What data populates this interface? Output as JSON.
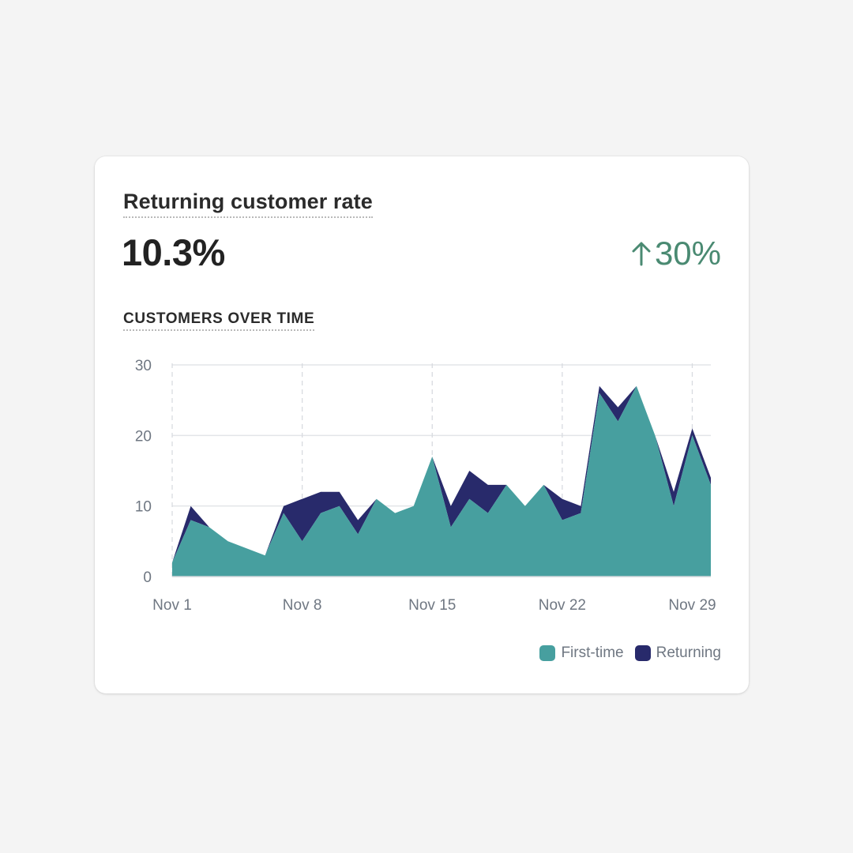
{
  "card": {
    "title": "Returning customer rate",
    "metric_value": "10.3%",
    "change_value": "30%",
    "change_icon": "arrow-up-icon",
    "change_color": "#4a8a72",
    "section_title": "CUSTOMERS OVER TIME"
  },
  "chart_data": {
    "type": "area",
    "stacked": true,
    "title": "CUSTOMERS OVER TIME",
    "xlabel": "",
    "ylabel": "",
    "x_tick_labels": [
      "Nov 1",
      "Nov 8",
      "Nov 15",
      "Nov 22",
      "Nov 29"
    ],
    "x_tick_days": [
      1,
      8,
      15,
      22,
      29
    ],
    "y_ticks": [
      0,
      10,
      20,
      30
    ],
    "ylim": [
      0,
      30
    ],
    "xlim": [
      1,
      30
    ],
    "grid": true,
    "legend_position": "bottom-right",
    "days": [
      1,
      2,
      3,
      4,
      5,
      6,
      7,
      8,
      9,
      10,
      11,
      12,
      13,
      14,
      15,
      16,
      17,
      18,
      19,
      20,
      21,
      22,
      23,
      24,
      25,
      26,
      27,
      28,
      29,
      30
    ],
    "series": [
      {
        "name": "First-time",
        "color": "#479f9f",
        "values": [
          2,
          8,
          7,
          5,
          4,
          3,
          9,
          5,
          9,
          10,
          6,
          11,
          9,
          10,
          17,
          7,
          11,
          9,
          13,
          10,
          13,
          8,
          9,
          26,
          22,
          27,
          20,
          10,
          20,
          13
        ]
      },
      {
        "name": "Returning",
        "color": "#282a6b",
        "values": [
          0,
          2,
          0,
          0,
          0,
          0,
          1,
          6,
          3,
          2,
          2,
          0,
          0,
          0,
          0,
          3,
          4,
          4,
          0,
          0,
          0,
          3,
          1,
          1,
          2,
          0,
          0,
          2,
          1,
          1
        ]
      }
    ]
  }
}
